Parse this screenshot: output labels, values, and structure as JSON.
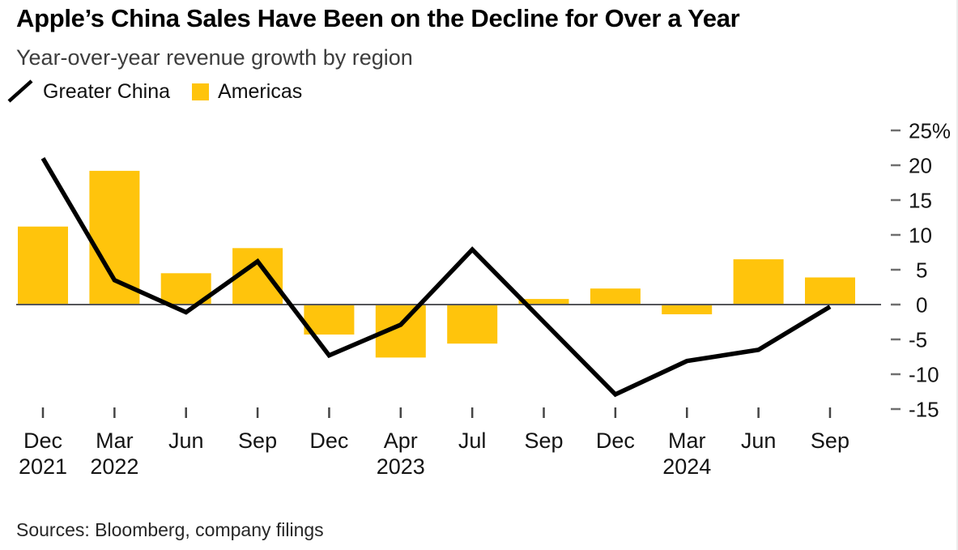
{
  "header": {
    "title": "Apple’s China Sales Have Been on the Decline for Over a Year",
    "subtitle": "Year-over-year revenue growth by region"
  },
  "legend": {
    "items": [
      {
        "label": "Greater China",
        "marker": "line"
      },
      {
        "label": "Americas",
        "marker": "square"
      }
    ]
  },
  "colors": {
    "bar": "#ffc40c",
    "line": "#000000",
    "axis_line": "#55565a",
    "y_tick": "#6f6f6f",
    "x_tick": "#454545",
    "text": "#141414"
  },
  "chart_data": {
    "type": "combo",
    "categories": [
      "Dec 2021",
      "Mar 2022",
      "Jun",
      "Sep",
      "Dec",
      "Apr 2023",
      "Jul",
      "Sep",
      "Dec",
      "Mar 2024",
      "Jun",
      "Sep"
    ],
    "x_tick_top_labels": [
      "Dec",
      "Mar",
      "Jun",
      "Sep",
      "Dec",
      "Apr",
      "Jul",
      "Sep",
      "Dec",
      "Mar",
      "Jun",
      "Sep"
    ],
    "x_tick_bottom_labels": [
      "2021",
      "2022",
      "",
      "",
      "",
      "2023",
      "",
      "",
      "",
      "2024",
      "",
      ""
    ],
    "series": [
      {
        "name": "Greater China",
        "type": "line",
        "color": "#000000",
        "values": [
          21.0,
          3.5,
          -1.1,
          6.2,
          -7.3,
          -2.9,
          7.9,
          -2.5,
          -12.9,
          -8.1,
          -6.5,
          -0.3
        ]
      },
      {
        "name": "Americas",
        "type": "bar",
        "color": "#ffc40c",
        "values": [
          11.2,
          19.2,
          4.5,
          8.1,
          -4.3,
          -7.6,
          -5.6,
          0.8,
          2.3,
          -1.4,
          6.5,
          3.9
        ]
      }
    ],
    "y_ticks": [
      25,
      20,
      15,
      10,
      5,
      0,
      -5,
      -10,
      -15
    ],
    "y_tick_unit": "%",
    "ylim": [
      -17,
      27
    ],
    "grid": false,
    "legend_position": "top-left",
    "y_axis_position": "right"
  },
  "footer": {
    "source": "Sources: Bloomberg, company filings"
  }
}
